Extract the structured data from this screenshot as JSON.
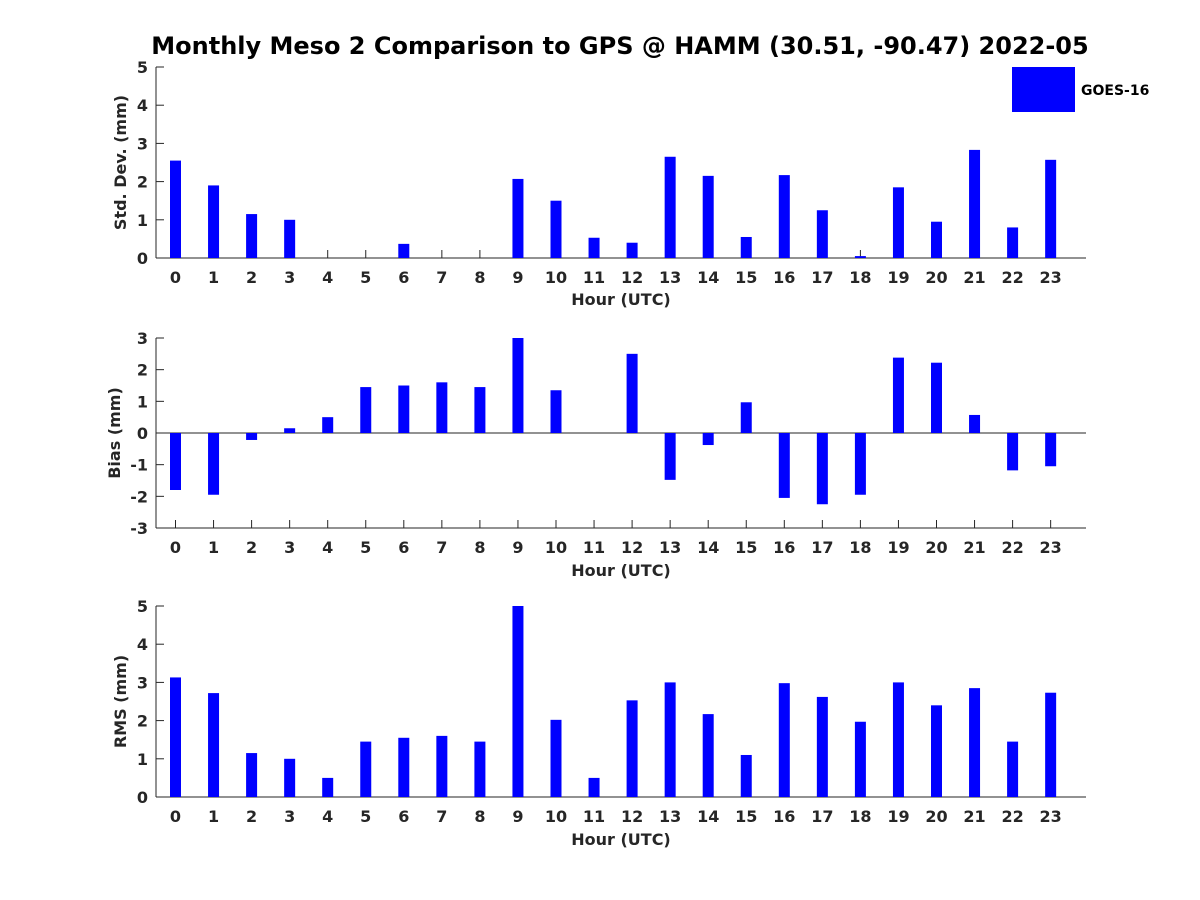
{
  "title": "Monthly Meso 2 Comparison to GPS @ HAMM (30.51, -90.47) 2022-05",
  "legend": {
    "label": "GOES-16",
    "color": "#0000ff",
    "placement": "top-right"
  },
  "chart_data": [
    {
      "type": "bar",
      "categories": [
        "0",
        "1",
        "2",
        "3",
        "4",
        "5",
        "6",
        "7",
        "8",
        "9",
        "10",
        "11",
        "12",
        "13",
        "14",
        "15",
        "16",
        "17",
        "18",
        "19",
        "20",
        "21",
        "22",
        "23"
      ],
      "series": [
        {
          "name": "GOES-16",
          "color": "#0000ff",
          "values": [
            2.55,
            1.9,
            1.15,
            1.0,
            0,
            0,
            0.37,
            0,
            0,
            2.07,
            1.5,
            0.53,
            0.4,
            2.65,
            2.15,
            0.55,
            2.17,
            1.25,
            0.05,
            1.85,
            0.95,
            2.83,
            0.8,
            2.57
          ]
        }
      ],
      "title": "",
      "xlabel": "Hour (UTC)",
      "ylabel": "Std. Dev. (mm)",
      "ylim": [
        0,
        5
      ],
      "yticks": [
        "0",
        "1",
        "2",
        "3",
        "4",
        "5"
      ],
      "grid": false
    },
    {
      "type": "bar",
      "categories": [
        "0",
        "1",
        "2",
        "3",
        "4",
        "5",
        "6",
        "7",
        "8",
        "9",
        "10",
        "11",
        "12",
        "13",
        "14",
        "15",
        "16",
        "17",
        "18",
        "19",
        "20",
        "21",
        "22",
        "23"
      ],
      "series": [
        {
          "name": "GOES-16",
          "color": "#0000ff",
          "values": [
            -1.8,
            -1.95,
            -0.22,
            0.15,
            0.5,
            1.45,
            1.5,
            1.6,
            1.45,
            3.0,
            1.35,
            0,
            2.5,
            -1.48,
            -0.38,
            0.97,
            -2.05,
            -2.25,
            -1.95,
            2.38,
            2.22,
            0.57,
            -1.18,
            -1.05
          ]
        }
      ],
      "title": "",
      "xlabel": "Hour (UTC)",
      "ylabel": "Bias (mm)",
      "ylim": [
        -3,
        3
      ],
      "yticks": [
        "-3",
        "-2",
        "-1",
        "0",
        "1",
        "2",
        "3"
      ],
      "grid": false
    },
    {
      "type": "bar",
      "categories": [
        "0",
        "1",
        "2",
        "3",
        "4",
        "5",
        "6",
        "7",
        "8",
        "9",
        "10",
        "11",
        "12",
        "13",
        "14",
        "15",
        "16",
        "17",
        "18",
        "19",
        "20",
        "21",
        "22",
        "23"
      ],
      "series": [
        {
          "name": "GOES-16",
          "color": "#0000ff",
          "values": [
            3.13,
            2.72,
            1.15,
            1.0,
            0.5,
            1.45,
            1.55,
            1.6,
            1.45,
            5.0,
            2.02,
            0.5,
            2.53,
            3.0,
            2.17,
            1.1,
            2.98,
            2.62,
            1.97,
            3.0,
            2.4,
            2.85,
            1.45,
            2.73
          ]
        }
      ],
      "title": "",
      "xlabel": "Hour (UTC)",
      "ylabel": "RMS (mm)",
      "ylim": [
        0,
        5
      ],
      "yticks": [
        "0",
        "1",
        "2",
        "3",
        "4",
        "5"
      ],
      "grid": false
    }
  ]
}
